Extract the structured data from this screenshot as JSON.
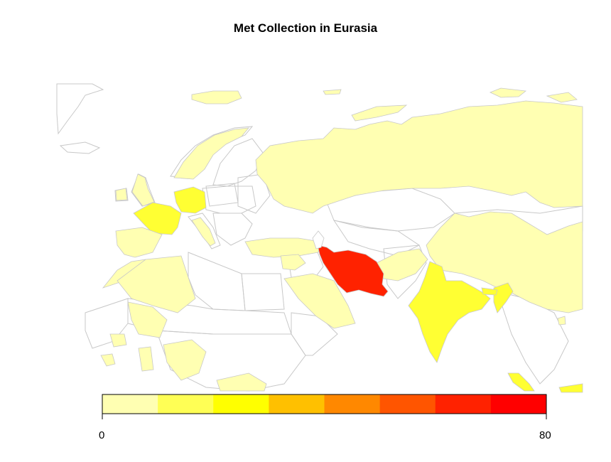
{
  "title": "Met Collection in Eurasia",
  "legend": {
    "min_label": "0",
    "max_label": "80",
    "min": 0,
    "max": 80,
    "bins": 8,
    "colors": [
      "#ffffb2",
      "#ffff55",
      "#ffff00",
      "#ffc000",
      "#ff8800",
      "#ff5500",
      "#ff2200",
      "#ff0000"
    ]
  },
  "map": {
    "region": "Eurasia",
    "no_data_fill": "#ffffff",
    "border_color": "#c8c8c8",
    "highlighted": [
      {
        "country": "Iran",
        "level": 7
      },
      {
        "country": "India",
        "level": 2
      },
      {
        "country": "France",
        "level": 2
      },
      {
        "country": "Germany",
        "level": 2
      },
      {
        "country": "Indonesia",
        "level": 2
      },
      {
        "country": "Russia",
        "level": 1
      },
      {
        "country": "China",
        "level": 1
      },
      {
        "country": "Saudi Arabia",
        "level": 1
      },
      {
        "country": "Turkey",
        "level": 1
      },
      {
        "country": "Egypt",
        "level": 0
      },
      {
        "country": "Spain",
        "level": 1
      },
      {
        "country": "Algeria",
        "level": 1
      }
    ]
  }
}
